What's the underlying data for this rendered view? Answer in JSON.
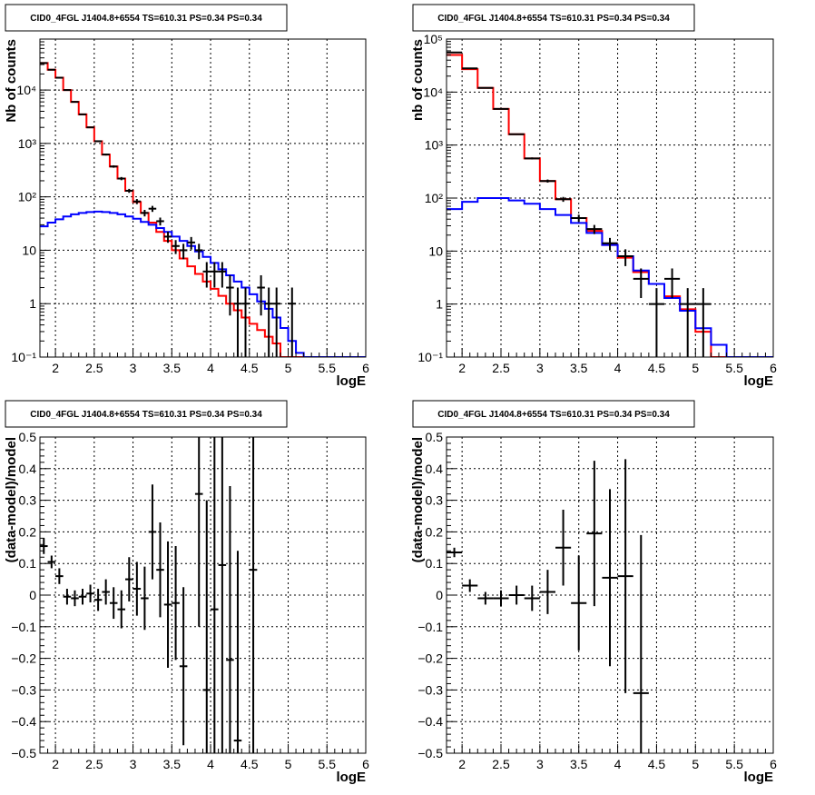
{
  "panels": [
    {
      "title": "CID0_4FGL J1404.8+6554 TS=610.31 PS=0.34 PS=0.34"
    },
    {
      "title": "CID0_4FGL J1404.8+6554 TS=610.31 PS=0.34 PS=0.34"
    },
    {
      "title": "CID0_4FGL J1404.8+6554 TS=610.31 PS=0.34 PS=0.34"
    },
    {
      "title": "CID0_4FGL J1404.8+6554 TS=610.31 PS=0.34 PS=0.34"
    }
  ],
  "chart_data": [
    {
      "type": "line",
      "title": "CID0_4FGL J1404.8+6554 TS=610.31 PS=0.34 PS=0.34",
      "xlabel": "logE",
      "ylabel": "Nb of counts",
      "xlim": [
        1.8,
        6
      ],
      "ylim": [
        0.1,
        90000
      ],
      "yscale": "log",
      "grid": true,
      "x_ticks": [
        2,
        2.5,
        3,
        3.5,
        4,
        4.5,
        5,
        5.5,
        6
      ],
      "x_tick_labels": [
        "2",
        "2.5",
        "3",
        "3.5",
        "4",
        "4.5",
        "5",
        "5.5",
        "6"
      ],
      "y_ticks": [
        0.1,
        1,
        10,
        100,
        1000,
        10000
      ],
      "y_tick_labels": [
        "10⁻¹",
        "1",
        "10",
        "10²",
        "10³",
        "10⁴"
      ],
      "bin_edges": [
        1.8,
        1.9,
        2.0,
        2.1,
        2.2,
        2.3,
        2.4,
        2.5,
        2.6,
        2.7,
        2.8,
        2.9,
        3.0,
        3.1,
        3.2,
        3.3,
        3.4,
        3.5,
        3.6,
        3.7,
        3.8,
        3.9,
        4.0,
        4.1,
        4.2,
        4.3,
        4.4,
        4.5,
        4.6,
        4.7,
        4.8,
        4.9,
        5.0,
        5.1,
        5.2,
        5.3,
        5.4,
        5.5,
        5.6,
        5.7,
        5.8,
        5.9,
        6.0
      ],
      "series": [
        {
          "color": "#ff0000",
          "style": "step",
          "values": [
            32000,
            24000,
            17000,
            10000,
            6000,
            3500,
            2000,
            1100,
            620,
            370,
            220,
            130,
            80,
            50,
            33,
            22,
            15,
            10,
            7,
            5,
            3.6,
            2.6,
            1.9,
            1.4,
            1.0,
            0.75,
            0.55,
            0.42,
            0.32,
            0.24,
            0.18,
            0.1,
            0.1,
            0.1,
            0.1,
            0.1,
            0.1,
            0.1,
            0.1,
            0.1,
            0.1,
            0.1
          ]
        },
        {
          "color": "#0000ff",
          "style": "step",
          "values": [
            28,
            33,
            38,
            43,
            47,
            50,
            52,
            53,
            52,
            50,
            47,
            43,
            39,
            34,
            30,
            26,
            22,
            18,
            15,
            12,
            9.5,
            7.5,
            5.8,
            4.4,
            3.4,
            2.6,
            2.0,
            1.5,
            1.1,
            0.8,
            0.55,
            0.35,
            0.2,
            0.12,
            0.1,
            0.1,
            0.1,
            0.1,
            0.1,
            0.1,
            0.1,
            0.1
          ]
        },
        {
          "name": "data",
          "color": "#000000",
          "style": "errorbar",
          "points": [
            {
              "x": 1.85,
              "y": 32000,
              "err": 180
            },
            {
              "x": 1.95,
              "y": 24000,
              "err": 155
            },
            {
              "x": 2.05,
              "y": 17000,
              "err": 130
            },
            {
              "x": 2.15,
              "y": 10000,
              "err": 100
            },
            {
              "x": 2.25,
              "y": 6000,
              "err": 78
            },
            {
              "x": 2.35,
              "y": 3500,
              "err": 59
            },
            {
              "x": 2.45,
              "y": 2000,
              "err": 45
            },
            {
              "x": 2.55,
              "y": 1100,
              "err": 33
            },
            {
              "x": 2.65,
              "y": 620,
              "err": 25
            },
            {
              "x": 2.75,
              "y": 370,
              "err": 19
            },
            {
              "x": 2.85,
              "y": 220,
              "err": 15
            },
            {
              "x": 2.95,
              "y": 130,
              "err": 11
            },
            {
              "x": 3.05,
              "y": 82,
              "err": 9
            },
            {
              "x": 3.15,
              "y": 50,
              "err": 7
            },
            {
              "x": 3.25,
              "y": 60,
              "err": 7.7
            },
            {
              "x": 3.35,
              "y": 35,
              "err": 5.9
            },
            {
              "x": 3.45,
              "y": 18,
              "err": 4.2
            },
            {
              "x": 3.55,
              "y": 12,
              "err": 3.5
            },
            {
              "x": 3.65,
              "y": 10,
              "err": 3.2
            },
            {
              "x": 3.75,
              "y": 14,
              "err": 3.7
            },
            {
              "x": 3.85,
              "y": 10,
              "err": 3.2
            },
            {
              "x": 3.95,
              "y": 4,
              "err": 2
            },
            {
              "x": 4.05,
              "y": 4,
              "err": 2
            },
            {
              "x": 4.15,
              "y": 4,
              "err": 2
            },
            {
              "x": 4.25,
              "y": 2,
              "err": 1.4
            },
            {
              "x": 4.35,
              "y": 1,
              "err": 1
            },
            {
              "x": 4.45,
              "y": 1,
              "err": 1
            },
            {
              "x": 4.65,
              "y": 2,
              "err": 1.4
            },
            {
              "x": 4.75,
              "y": 1,
              "err": 1
            },
            {
              "x": 4.85,
              "y": 1,
              "err": 1
            },
            {
              "x": 5.05,
              "y": 1,
              "err": 1
            }
          ]
        }
      ]
    },
    {
      "type": "line",
      "title": "CID0_4FGL J1404.8+6554 TS=610.31 PS=0.34 PS=0.34",
      "xlabel": "logE",
      "ylabel": "nb of counts",
      "xlim": [
        1.8,
        6
      ],
      "ylim": [
        0.1,
        100000
      ],
      "yscale": "log",
      "grid": true,
      "x_ticks": [
        2,
        2.5,
        3,
        3.5,
        4,
        4.5,
        5,
        5.5,
        6
      ],
      "x_tick_labels": [
        "2",
        "2.5",
        "3",
        "3.5",
        "4",
        "4.5",
        "5",
        "5.5",
        "6"
      ],
      "y_ticks": [
        0.1,
        1,
        10,
        100,
        1000,
        10000,
        100000
      ],
      "y_tick_labels": [
        "10⁻¹",
        "1",
        "10",
        "10²",
        "10³",
        "10⁴",
        "10⁵"
      ],
      "bin_edges": [
        1.8,
        2.0,
        2.2,
        2.4,
        2.6,
        2.8,
        3.0,
        3.2,
        3.4,
        3.6,
        3.8,
        4.0,
        4.2,
        4.4,
        4.6,
        4.8,
        5.0,
        5.2,
        5.4,
        5.6,
        5.8,
        6.0
      ],
      "series": [
        {
          "color": "#ff0000",
          "style": "step",
          "values": [
            50000,
            27000,
            12000,
            4800,
            1600,
            560,
            210,
            95,
            42,
            24,
            13,
            7.5,
            4.0,
            2.4,
            1.4,
            0.8,
            0.3,
            0.1,
            0.1,
            0.1,
            0.1
          ]
        },
        {
          "color": "#0000ff",
          "style": "step",
          "values": [
            62,
            85,
            100,
            100,
            90,
            78,
            62,
            48,
            34,
            22,
            13,
            8.0,
            4.3,
            2.4,
            1.3,
            0.75,
            0.35,
            0.17,
            0.1,
            0.1,
            0.1
          ]
        },
        {
          "name": "data",
          "color": "#000000",
          "style": "errorbar",
          "points": [
            {
              "x": 1.9,
              "y": 56000,
              "err": 240
            },
            {
              "x": 2.1,
              "y": 28000,
              "err": 170
            },
            {
              "x": 2.3,
              "y": 12000,
              "err": 110
            },
            {
              "x": 2.5,
              "y": 4800,
              "err": 70
            },
            {
              "x": 2.7,
              "y": 1600,
              "err": 40
            },
            {
              "x": 2.9,
              "y": 560,
              "err": 24
            },
            {
              "x": 3.1,
              "y": 210,
              "err": 14
            },
            {
              "x": 3.3,
              "y": 95,
              "err": 10
            },
            {
              "x": 3.5,
              "y": 42,
              "err": 6.5
            },
            {
              "x": 3.7,
              "y": 26,
              "err": 5.1
            },
            {
              "x": 3.9,
              "y": 14,
              "err": 3.7
            },
            {
              "x": 4.1,
              "y": 8,
              "err": 2.8
            },
            {
              "x": 4.3,
              "y": 3,
              "err": 1.7
            },
            {
              "x": 4.5,
              "y": 1,
              "err": 1
            },
            {
              "x": 4.7,
              "y": 3,
              "err": 1.7
            },
            {
              "x": 4.9,
              "y": 1,
              "err": 1
            },
            {
              "x": 5.1,
              "y": 1,
              "err": 1
            }
          ]
        }
      ]
    },
    {
      "type": "scatter",
      "title": "CID0_4FGL J1404.8+6554 TS=610.31 PS=0.34 PS=0.34",
      "xlabel": "logE",
      "ylabel": "(data-model)/model",
      "xlim": [
        1.8,
        6
      ],
      "ylim": [
        -0.5,
        0.5
      ],
      "grid": true,
      "x_ticks": [
        2,
        2.5,
        3,
        3.5,
        4,
        4.5,
        5,
        5.5,
        6
      ],
      "x_tick_labels": [
        "2",
        "2.5",
        "3",
        "3.5",
        "4",
        "4.5",
        "5",
        "5.5",
        "6"
      ],
      "y_ticks": [
        -0.5,
        -0.4,
        -0.3,
        -0.2,
        -0.1,
        0,
        0.1,
        0.2,
        0.3,
        0.4,
        0.5
      ],
      "y_tick_labels": [
        "−0.5",
        "−0.4",
        "−0.3",
        "−0.2",
        "−0.1",
        "0",
        "0.1",
        "0.2",
        "0.3",
        "0.4",
        "0.5"
      ],
      "half_width": 0.05,
      "series": [
        {
          "name": "residuals",
          "color": "#000000",
          "points": [
            {
              "x": 1.85,
              "y": 0.155,
              "err": 0.025
            },
            {
              "x": 1.95,
              "y": 0.105,
              "err": 0.02
            },
            {
              "x": 2.05,
              "y": 0.06,
              "err": 0.025
            },
            {
              "x": 2.15,
              "y": -0.005,
              "err": 0.025
            },
            {
              "x": 2.25,
              "y": -0.01,
              "err": 0.025
            },
            {
              "x": 2.35,
              "y": -0.005,
              "err": 0.025
            },
            {
              "x": 2.45,
              "y": 0.005,
              "err": 0.028
            },
            {
              "x": 2.55,
              "y": -0.015,
              "err": 0.035
            },
            {
              "x": 2.65,
              "y": 0.01,
              "err": 0.04
            },
            {
              "x": 2.75,
              "y": -0.025,
              "err": 0.05
            },
            {
              "x": 2.85,
              "y": -0.045,
              "err": 0.06
            },
            {
              "x": 2.95,
              "y": 0.05,
              "err": 0.07
            },
            {
              "x": 3.05,
              "y": 0.02,
              "err": 0.085
            },
            {
              "x": 3.15,
              "y": -0.01,
              "err": 0.1
            },
            {
              "x": 3.25,
              "y": 0.2,
              "err": 0.15
            },
            {
              "x": 3.35,
              "y": 0.08,
              "err": 0.15
            },
            {
              "x": 3.45,
              "y": -0.03,
              "err": 0.2
            },
            {
              "x": 3.55,
              "y": -0.025,
              "err": 0.18
            },
            {
              "x": 3.65,
              "y": -0.225,
              "err": 0.25
            },
            {
              "x": 3.85,
              "y": 0.32,
              "err": 0.42
            },
            {
              "x": 3.95,
              "y": -0.3,
              "err": 0.6
            },
            {
              "x": 4.05,
              "y": -0.045,
              "err": 0.6
            },
            {
              "x": 4.15,
              "y": 0.095,
              "err": 0.7
            },
            {
              "x": 4.25,
              "y": -0.205,
              "err": 0.55
            },
            {
              "x": 4.35,
              "y": -0.46,
              "err": 0.6
            },
            {
              "x": 4.55,
              "y": 0.08,
              "err": 0.7
            }
          ]
        }
      ]
    },
    {
      "type": "scatter",
      "title": "CID0_4FGL J1404.8+6554 TS=610.31 PS=0.34 PS=0.34",
      "xlabel": "logE",
      "ylabel": "(data-model)/model",
      "xlim": [
        1.8,
        6
      ],
      "ylim": [
        -0.5,
        0.5
      ],
      "grid": true,
      "x_ticks": [
        2,
        2.5,
        3,
        3.5,
        4,
        4.5,
        5,
        5.5,
        6
      ],
      "x_tick_labels": [
        "2",
        "2.5",
        "3",
        "3.5",
        "4",
        "4.5",
        "5",
        "5.5",
        "6"
      ],
      "y_ticks": [
        -0.5,
        -0.4,
        -0.3,
        -0.2,
        -0.1,
        0,
        0.1,
        0.2,
        0.3,
        0.4,
        0.5
      ],
      "y_tick_labels": [
        "−0.5",
        "−0.4",
        "−0.3",
        "−0.2",
        "−0.1",
        "0",
        "0.1",
        "0.2",
        "0.3",
        "0.4",
        "0.5"
      ],
      "half_width": 0.1,
      "series": [
        {
          "name": "residuals",
          "color": "#000000",
          "points": [
            {
              "x": 1.9,
              "y": 0.135,
              "err": 0.015
            },
            {
              "x": 2.1,
              "y": 0.03,
              "err": 0.02
            },
            {
              "x": 2.3,
              "y": -0.01,
              "err": 0.02
            },
            {
              "x": 2.5,
              "y": -0.01,
              "err": 0.025
            },
            {
              "x": 2.7,
              "y": 0.0,
              "err": 0.03
            },
            {
              "x": 2.9,
              "y": -0.01,
              "err": 0.04
            },
            {
              "x": 3.1,
              "y": 0.01,
              "err": 0.07
            },
            {
              "x": 3.3,
              "y": 0.15,
              "err": 0.12
            },
            {
              "x": 3.5,
              "y": -0.025,
              "err": 0.15
            },
            {
              "x": 3.7,
              "y": 0.195,
              "err": 0.23
            },
            {
              "x": 3.9,
              "y": 0.055,
              "err": 0.28
            },
            {
              "x": 4.1,
              "y": 0.06,
              "err": 0.37
            },
            {
              "x": 4.3,
              "y": -0.31,
              "err": 0.5
            }
          ]
        }
      ]
    }
  ]
}
